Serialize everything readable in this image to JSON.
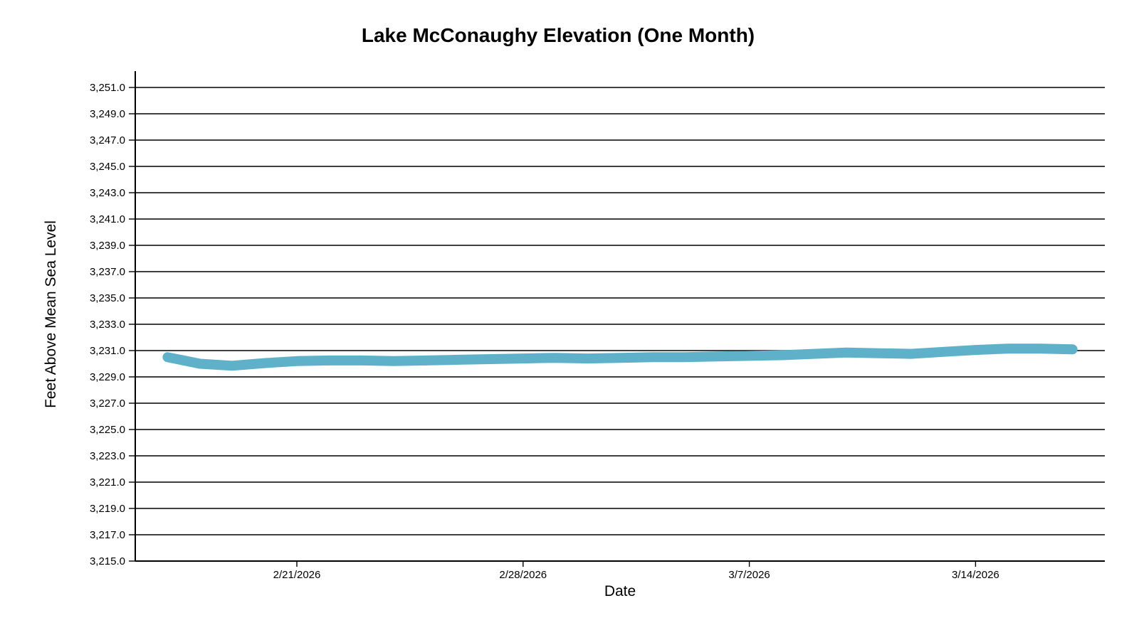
{
  "chart_data": {
    "type": "line",
    "title": "Lake McConaughy Elevation (One Month)",
    "xlabel": "Date",
    "ylabel": "Feet Above Mean Sea Level",
    "background_color": "#FFFFFF",
    "axis_color": "#000000",
    "grid_color": "#000000",
    "line_color": "#5EB1C8",
    "line_width": 14,
    "grid": true,
    "legend": "none",
    "ylim": [
      3215,
      3251
    ],
    "ytick_step": 2,
    "ytick_labels": [
      "3,215.0",
      "3,217.0",
      "3,219.0",
      "3,221.0",
      "3,223.0",
      "3,225.0",
      "3,227.0",
      "3,229.0",
      "3,231.0",
      "3,233.0",
      "3,235.0",
      "3,237.0",
      "3,239.0",
      "3,241.0",
      "3,243.0",
      "3,245.0",
      "3,247.0",
      "3,249.0",
      "3,251.0"
    ],
    "xtick_labels": [
      "2/21/2026",
      "2/28/2026",
      "3/7/2026",
      "3/14/2026"
    ],
    "xtick_day_offsets": [
      5,
      12,
      19,
      26
    ],
    "x_axis_total_days": 30,
    "series": [
      {
        "name": "Elevation",
        "start_day_offset": 1,
        "dates": [
          "2/17/2026",
          "2/18/2026",
          "2/19/2026",
          "2/20/2026",
          "2/21/2026",
          "2/22/2026",
          "2/23/2026",
          "2/24/2026",
          "2/25/2026",
          "2/26/2026",
          "2/27/2026",
          "2/28/2026",
          "3/1/2026",
          "3/2/2026",
          "3/3/2026",
          "3/4/2026",
          "3/5/2026",
          "3/6/2026",
          "3/7/2026",
          "3/8/2026",
          "3/9/2026",
          "3/10/2026",
          "3/11/2026",
          "3/12/2026",
          "3/13/2026",
          "3/14/2026",
          "3/15/2026",
          "3/16/2026",
          "3/17/2026"
        ],
        "values": [
          3230.5,
          3230.0,
          3229.85,
          3230.05,
          3230.2,
          3230.25,
          3230.25,
          3230.2,
          3230.25,
          3230.3,
          3230.35,
          3230.4,
          3230.45,
          3230.4,
          3230.45,
          3230.5,
          3230.5,
          3230.55,
          3230.6,
          3230.65,
          3230.75,
          3230.85,
          3230.8,
          3230.75,
          3230.9,
          3231.05,
          3231.15,
          3231.15,
          3231.1
        ]
      }
    ]
  }
}
